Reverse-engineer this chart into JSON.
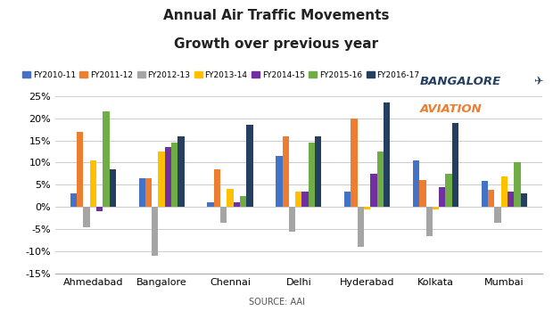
{
  "title": "Annual Air Traffic Movements\nGrowth over previous year",
  "source": "SOURCE: AAI",
  "airports": [
    "Ahmedabad",
    "Bangalore",
    "Chennai",
    "Delhi",
    "Hyderabad",
    "Kolkata",
    "Mumbai"
  ],
  "years": [
    "FY2010-11",
    "FY2011-12",
    "FY2012-13",
    "FY2013-14",
    "FY2014-15",
    "FY2015-16",
    "FY2016-17"
  ],
  "colors": [
    "#4472c4",
    "#ed7d31",
    "#a5a5a5",
    "#ffc000",
    "#7030a0",
    "#70ad47",
    "#243f60"
  ],
  "data": {
    "FY2010-11": [
      3.0,
      6.5,
      1.0,
      11.5,
      3.5,
      10.5,
      5.8
    ],
    "FY2011-12": [
      17.0,
      6.5,
      8.5,
      16.0,
      20.0,
      6.0,
      3.8
    ],
    "FY2012-13": [
      -4.5,
      -11.0,
      -3.5,
      -5.5,
      -9.0,
      -6.5,
      -3.5
    ],
    "FY2013-14": [
      10.5,
      12.5,
      4.0,
      3.5,
      -0.5,
      -0.5,
      6.8
    ],
    "FY2014-15": [
      -1.0,
      13.5,
      1.0,
      3.5,
      7.5,
      4.5,
      3.5
    ],
    "FY2015-16": [
      21.5,
      14.5,
      2.5,
      14.5,
      12.5,
      7.5,
      10.0
    ],
    "FY2016-17": [
      8.5,
      16.0,
      18.5,
      16.0,
      23.5,
      19.0,
      3.0
    ]
  },
  "ylim": [
    -15,
    27
  ],
  "yticks": [
    -15,
    -10,
    -5,
    0,
    5,
    10,
    15,
    20,
    25
  ],
  "ytick_labels": [
    "-15%",
    "-10%",
    "-5%",
    "0%",
    "5%",
    "10%",
    "15%",
    "20%",
    "25%"
  ],
  "background_color": "#ffffff",
  "logo_text1": "BANGALORE",
  "logo_text2": "AVIATION"
}
